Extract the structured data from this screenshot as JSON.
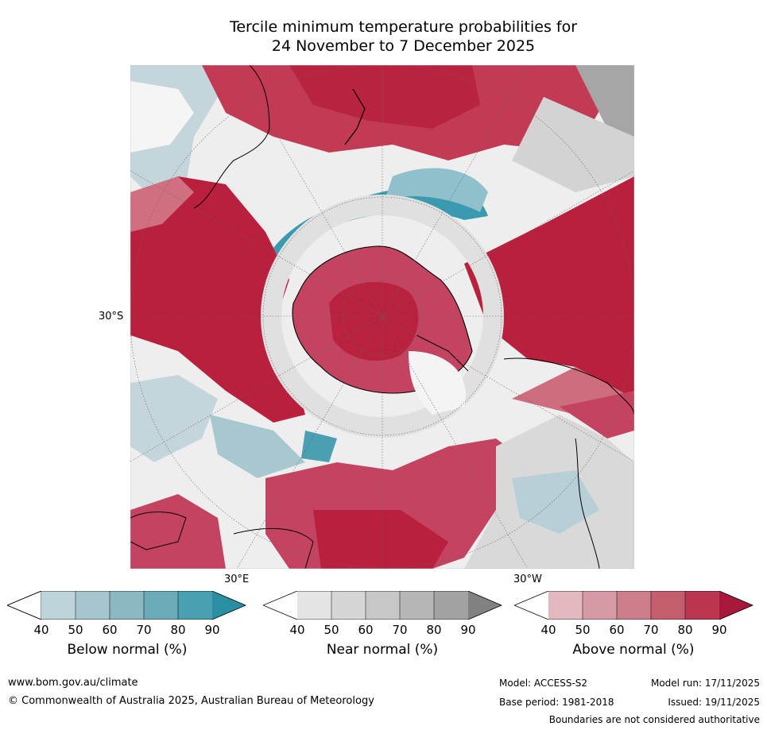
{
  "title_line1": "Tercile minimum temperature probabilities for",
  "title_line2": "24 November to 7 December 2025",
  "map": {
    "lat_label": "30°S",
    "lon_label_east": "30°E",
    "lon_label_west": "30°W"
  },
  "colorbars": [
    {
      "title": "Below normal (%)",
      "ticks": [
        "40",
        "50",
        "60",
        "70",
        "80",
        "90"
      ],
      "colors": [
        "#bcd4da",
        "#a5c6cd",
        "#8cb8c3",
        "#6cacb8",
        "#47a1b1",
        "#2a8fa3"
      ]
    },
    {
      "title": "Near normal (%)",
      "ticks": [
        "40",
        "50",
        "60",
        "70",
        "80",
        "90"
      ],
      "colors": [
        "#e5e5e5",
        "#d6d6d6",
        "#c7c7c7",
        "#b6b6b6",
        "#a3a3a3",
        "#828282"
      ]
    },
    {
      "title": "Above normal (%)",
      "ticks": [
        "40",
        "50",
        "60",
        "70",
        "80",
        "90"
      ],
      "colors": [
        "#e1b9bf",
        "#d59aa3",
        "#cc7e8a",
        "#c45e6e",
        "#bb3651",
        "#a8183a"
      ]
    }
  ],
  "footer": {
    "website": "www.bom.gov.au/climate",
    "copyright": "© Commonwealth of Australia 2025, Australian Bureau of Meteorology",
    "model": "Model: ACCESS-S2",
    "base_period": "Base period: 1981-2018",
    "model_run": "Model run: 17/11/2025",
    "issued": "Issued: 19/11/2025",
    "boundaries_note": "Boundaries are not considered authoritative"
  }
}
